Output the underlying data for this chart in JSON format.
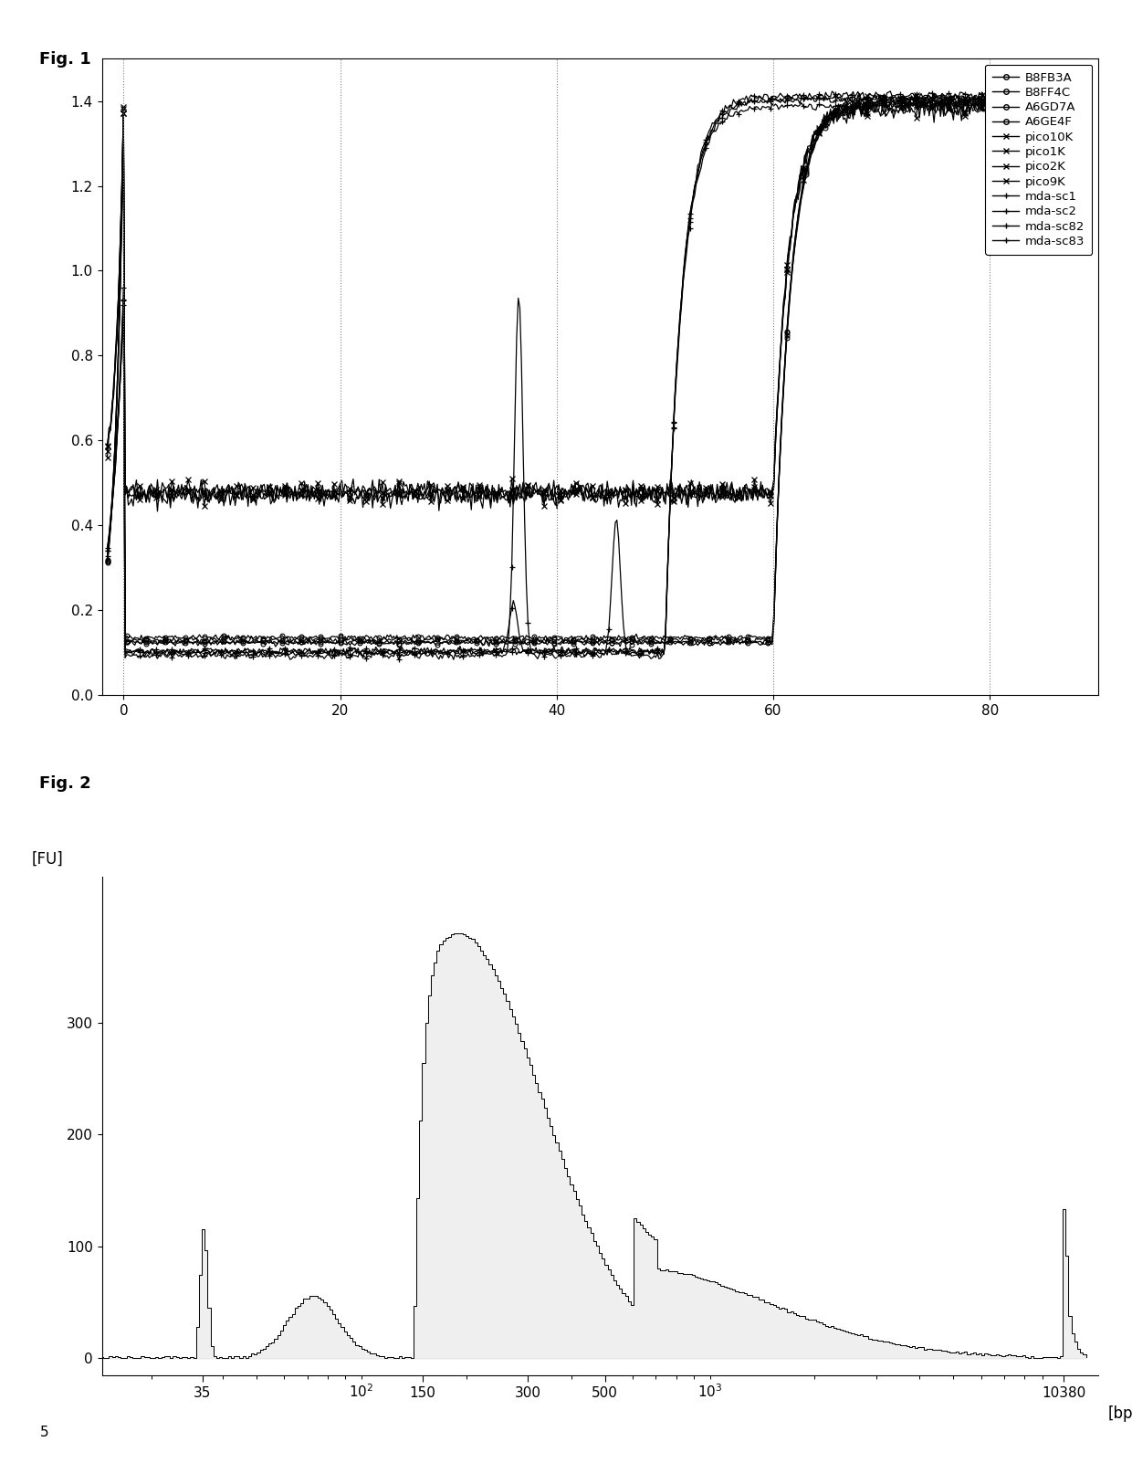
{
  "fig1_title": "Fig. 1",
  "fig2_title": "Fig. 2",
  "fig1_xlim": [
    -2,
    90
  ],
  "fig1_ylim": [
    0.0,
    1.5
  ],
  "fig1_xticks": [
    0,
    20,
    40,
    60,
    80
  ],
  "fig1_yticks": [
    0.0,
    0.2,
    0.4,
    0.6,
    0.8,
    1.0,
    1.2,
    1.4
  ],
  "fig1_vlines": [
    0,
    20,
    40,
    60,
    80
  ],
  "legend_circle_entries": [
    "B8FB3A",
    "B8FF4C",
    "A6GD7A",
    "A6GE4F"
  ],
  "legend_star_entries": [
    "pico10K",
    "pico1K",
    "pico2K",
    "pico9K"
  ],
  "legend_plus_entries": [
    "mda-sc1",
    "mda-sc2",
    "mda-sc82",
    "mda-sc83"
  ],
  "fig2_ylabel": "[FU]",
  "fig2_xlabel": "[bp]",
  "fig2_yticks": [
    0,
    100,
    200,
    300
  ],
  "fig2_xtick_labels": [
    "35",
    "150",
    "300",
    "500",
    "10380"
  ],
  "bottom_label": "5",
  "background_color": "#ffffff",
  "line_color": "#000000"
}
